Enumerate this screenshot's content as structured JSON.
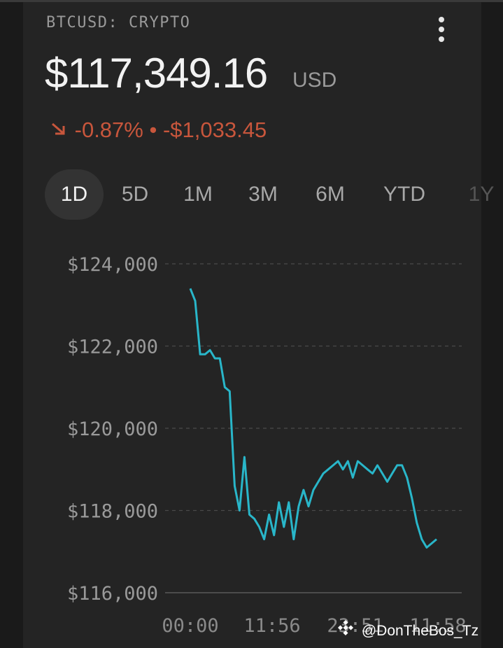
{
  "header": {
    "ticker": "BTCUSD: CRYPTO",
    "price": "$117,349.16",
    "currency": "USD",
    "change_percent": "-0.87%",
    "change_sep": "•",
    "change_amount": "-$1,033.45",
    "change_direction_icon": "arrow-down-right-icon",
    "change_color": "#c8563c"
  },
  "menu_icon": "more-vertical-icon",
  "tabs": [
    {
      "label": "1D",
      "active": true
    },
    {
      "label": "5D",
      "active": false
    },
    {
      "label": "1M",
      "active": false
    },
    {
      "label": "3M",
      "active": false
    },
    {
      "label": "6M",
      "active": false
    },
    {
      "label": "YTD",
      "active": false
    },
    {
      "label": "1Y",
      "active": false
    }
  ],
  "chart_data": {
    "type": "line",
    "ylim": [
      116000,
      124000
    ],
    "yticks": [
      "$124,000",
      "$122,000",
      "$120,000",
      "$118,000",
      "$116,000"
    ],
    "xticks": [
      "00:00",
      "11:56",
      "23:51",
      "11:58"
    ],
    "line_color": "#29b6c9",
    "grid": "dashed horizontal",
    "series": [
      {
        "x": [
          0,
          2,
          4,
          6,
          8,
          10,
          12,
          14,
          16,
          18,
          20,
          22,
          24,
          26,
          28,
          30,
          32,
          34,
          36,
          38,
          40,
          42,
          44,
          46,
          48,
          50,
          52,
          54,
          56,
          58,
          60,
          62,
          64,
          66,
          68,
          70,
          72,
          74,
          76,
          78,
          80,
          82,
          84,
          86,
          88,
          90,
          92,
          94,
          96,
          98,
          100
        ],
        "values": [
          123400,
          123100,
          121800,
          121800,
          121900,
          121700,
          121700,
          121000,
          120900,
          118600,
          118000,
          119300,
          117900,
          117800,
          117600,
          117300,
          117900,
          117400,
          118200,
          117600,
          118200,
          117300,
          118100,
          118500,
          118100,
          118500,
          118700,
          118900,
          119000,
          119100,
          119200,
          119000,
          119200,
          118800,
          119200,
          119100,
          119000,
          118900,
          119100,
          118900,
          118700,
          118900,
          119100,
          119100,
          118800,
          118300,
          117700,
          117300,
          117100,
          117200,
          117300
        ]
      }
    ]
  },
  "watermark": {
    "icon": "binance-logo-icon",
    "text": "@DonTheBos_Tz"
  }
}
